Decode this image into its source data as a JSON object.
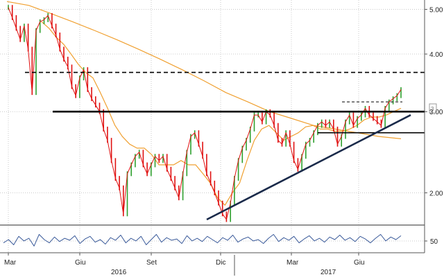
{
  "chart_data": {
    "type": "line",
    "title": "",
    "xlabel": "",
    "ylabel": "",
    "y_scale": "log",
    "ylim": [
      1.72,
      5.15
    ],
    "grid": true,
    "y_ticks": [
      "5.00",
      "4.00",
      "3.00",
      "2.00"
    ],
    "y_tick_values": [
      5.0,
      4.0,
      3.0,
      2.0
    ],
    "right_label": "3",
    "x_month_labels": [
      "Mar",
      "Giu",
      "Set",
      "Dic",
      "Mar",
      "Giu"
    ],
    "x_year_labels": [
      "2016",
      "2017"
    ],
    "indicator_tick": "50",
    "price_series": {
      "name": "",
      "color": "#e01010",
      "values": [
        5.05,
        4.8,
        4.55,
        4.3,
        4.6,
        4.1,
        3.3,
        4.5,
        4.7,
        4.75,
        4.85,
        4.6,
        4.4,
        4.1,
        3.9,
        3.75,
        3.4,
        3.25,
        3.55,
        3.7,
        3.35,
        3.2,
        3.1,
        3.0,
        2.75,
        2.6,
        2.35,
        2.15,
        2.05,
        1.8,
        2.2,
        2.3,
        2.4,
        2.45,
        2.3,
        2.2,
        2.3,
        2.4,
        2.35,
        2.4,
        2.25,
        2.15,
        2.05,
        1.95,
        2.2,
        2.45,
        2.65,
        2.7,
        2.55,
        2.4,
        2.2,
        2.1,
        2.0,
        1.9,
        1.8,
        1.75,
        1.9,
        2.15,
        2.35,
        2.5,
        2.6,
        2.75,
        2.95,
        2.95,
        2.85,
        3.0,
        2.95,
        2.8,
        2.6,
        2.55,
        2.7,
        2.55,
        2.35,
        2.25,
        2.4,
        2.55,
        2.6,
        2.7,
        2.8,
        2.85,
        2.8,
        2.85,
        2.75,
        2.55,
        2.65,
        2.85,
        2.95,
        2.8,
        2.9,
        2.95,
        3.05,
        2.95,
        2.9,
        2.85,
        2.8,
        3.05,
        3.15,
        3.2,
        3.25,
        3.35
      ]
    },
    "moving_average_short": {
      "name": "",
      "color": "#f0a030",
      "values": [
        4.7,
        4.55,
        4.35,
        4.2,
        4.0,
        3.8,
        3.65,
        3.55,
        3.3,
        3.05,
        2.8,
        2.65,
        2.55,
        2.5,
        2.5,
        2.42,
        2.3,
        2.3,
        2.3,
        2.35,
        2.3,
        2.3,
        2.2,
        2.1,
        1.95,
        1.88,
        2.0,
        2.1,
        2.35,
        2.6,
        2.75,
        2.8,
        2.7,
        2.6,
        2.65,
        2.7,
        2.78,
        2.8,
        2.75,
        2.75,
        2.72,
        2.72,
        2.75,
        2.8,
        2.88,
        2.92,
        2.92,
        2.95,
        3.0,
        3.05
      ]
    },
    "moving_average_long": {
      "name": "",
      "color": "#f0a030",
      "values": [
        5.2,
        5.1,
        4.9,
        4.7,
        4.5,
        4.3,
        4.1,
        3.9,
        3.7,
        3.5,
        3.3,
        3.15,
        3.0,
        2.9,
        2.8,
        2.75,
        2.7,
        2.65,
        2.62
      ]
    },
    "resistance_dashed": {
      "value": 3.65,
      "color": "#000000"
    },
    "support_solid": {
      "value": 3.0,
      "color": "#000000"
    },
    "short_dashed": {
      "value": 3.15,
      "color": "#000000"
    },
    "support_lower": {
      "value": 2.7,
      "color": "#000000"
    },
    "trendline": {
      "from": 1.75,
      "to": 2.95,
      "color": "#1a2a4a"
    },
    "indicator_series": {
      "name": "",
      "color": "#3a5a9a",
      "values": [
        45,
        50,
        42,
        55,
        48,
        52,
        40,
        58,
        50,
        45,
        54,
        47,
        52,
        49,
        56,
        44,
        51,
        55,
        46,
        50,
        43,
        53,
        49,
        57,
        45,
        52,
        48,
        55,
        42,
        50,
        58,
        46,
        53,
        49,
        51,
        44,
        56,
        48,
        52,
        47,
        55,
        50,
        45,
        53,
        49,
        57,
        46,
        51,
        54,
        48,
        50,
        44,
        52,
        58,
        47,
        53,
        49,
        55,
        45,
        51,
        56,
        48,
        52,
        46,
        54,
        50,
        57,
        49,
        53,
        47,
        55,
        51,
        45,
        52,
        58,
        48,
        54,
        50,
        56
      ]
    }
  }
}
